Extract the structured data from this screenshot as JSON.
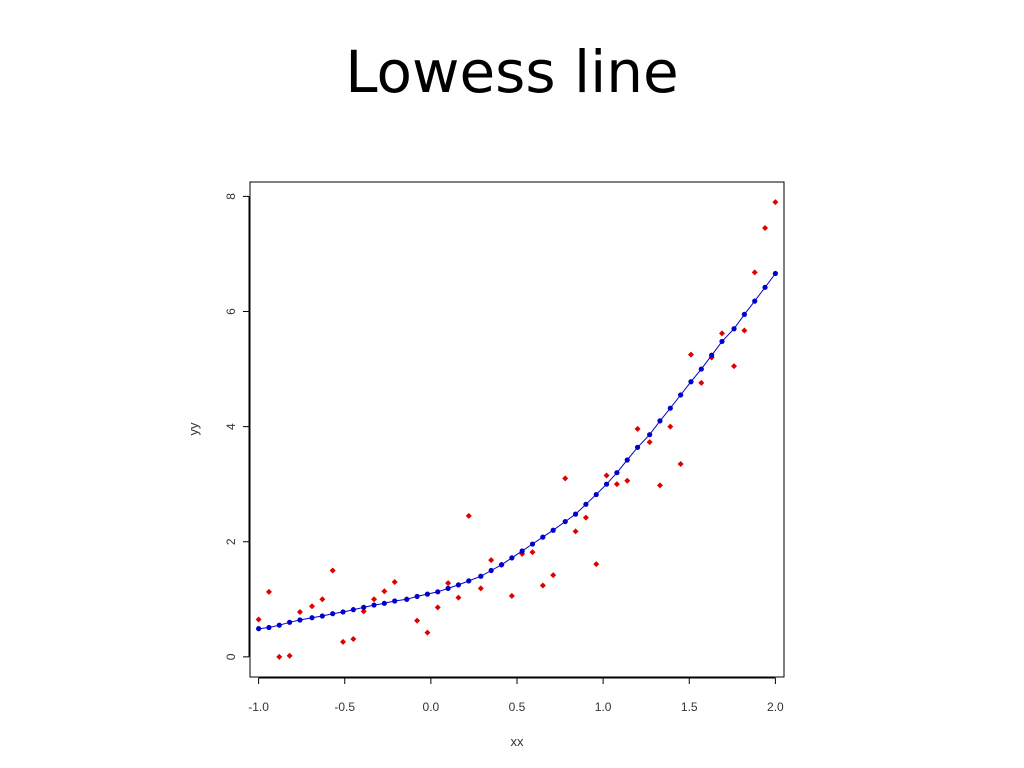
{
  "slide": {
    "title": "Lowess line"
  },
  "chart_data": {
    "type": "scatter",
    "title": "Lowess line",
    "xlabel": "xx",
    "ylabel": "yy",
    "xlim": [
      -1.05,
      2.05
    ],
    "ylim": [
      -0.35,
      8.25
    ],
    "x_ticks": [
      -1.0,
      -0.5,
      0.0,
      0.5,
      1.0,
      1.5,
      2.0
    ],
    "x_tick_labels": [
      "-1.0",
      "-0.5",
      "0.0",
      "0.5",
      "1.0",
      "1.5",
      "2.0"
    ],
    "y_ticks": [
      0,
      2,
      4,
      6,
      8
    ],
    "y_tick_labels": [
      "0",
      "2",
      "4",
      "6",
      "8"
    ],
    "grid": false,
    "legend": "none",
    "series": [
      {
        "kind": "points",
        "color": "#e00000",
        "points": [
          [
            -1.0,
            0.65
          ],
          [
            -0.94,
            1.13
          ],
          [
            -0.88,
            0.0
          ],
          [
            -0.82,
            0.02
          ],
          [
            -0.76,
            0.78
          ],
          [
            -0.69,
            0.88
          ],
          [
            -0.63,
            1.0
          ],
          [
            -0.57,
            1.5
          ],
          [
            -0.51,
            0.26
          ],
          [
            -0.45,
            0.31
          ],
          [
            -0.39,
            0.79
          ],
          [
            -0.33,
            1.0
          ],
          [
            -0.27,
            1.14
          ],
          [
            -0.21,
            1.3
          ],
          [
            -0.14,
            1.0
          ],
          [
            -0.08,
            0.63
          ],
          [
            -0.02,
            0.42
          ],
          [
            0.04,
            0.86
          ],
          [
            0.1,
            1.28
          ],
          [
            0.16,
            1.03
          ],
          [
            0.22,
            2.45
          ],
          [
            0.29,
            1.19
          ],
          [
            0.35,
            1.68
          ],
          [
            0.41,
            1.6
          ],
          [
            0.47,
            1.06
          ],
          [
            0.53,
            1.79
          ],
          [
            0.59,
            1.82
          ],
          [
            0.65,
            1.24
          ],
          [
            0.71,
            1.42
          ],
          [
            0.78,
            3.1
          ],
          [
            0.84,
            2.18
          ],
          [
            0.9,
            2.42
          ],
          [
            0.96,
            1.61
          ],
          [
            1.02,
            3.15
          ],
          [
            1.08,
            3.0
          ],
          [
            1.14,
            3.06
          ],
          [
            1.2,
            3.96
          ],
          [
            1.27,
            3.73
          ],
          [
            1.33,
            2.98
          ],
          [
            1.39,
            4.0
          ],
          [
            1.45,
            3.35
          ],
          [
            1.51,
            5.25
          ],
          [
            1.57,
            4.76
          ],
          [
            1.63,
            5.2
          ],
          [
            1.69,
            5.62
          ],
          [
            1.76,
            5.05
          ],
          [
            1.82,
            5.67
          ],
          [
            1.88,
            6.68
          ],
          [
            1.94,
            7.45
          ],
          [
            2.0,
            7.9
          ]
        ]
      },
      {
        "kind": "lowess-line",
        "color": "#0000cc",
        "points": [
          [
            -1.0,
            0.49
          ],
          [
            -0.94,
            0.51
          ],
          [
            -0.88,
            0.55
          ],
          [
            -0.82,
            0.6
          ],
          [
            -0.76,
            0.64
          ],
          [
            -0.69,
            0.68
          ],
          [
            -0.63,
            0.71
          ],
          [
            -0.57,
            0.75
          ],
          [
            -0.51,
            0.78
          ],
          [
            -0.45,
            0.82
          ],
          [
            -0.39,
            0.86
          ],
          [
            -0.33,
            0.9
          ],
          [
            -0.27,
            0.93
          ],
          [
            -0.21,
            0.97
          ],
          [
            -0.14,
            1.0
          ],
          [
            -0.08,
            1.05
          ],
          [
            -0.02,
            1.09
          ],
          [
            0.04,
            1.13
          ],
          [
            0.1,
            1.19
          ],
          [
            0.16,
            1.25
          ],
          [
            0.22,
            1.32
          ],
          [
            0.29,
            1.4
          ],
          [
            0.35,
            1.5
          ],
          [
            0.41,
            1.6
          ],
          [
            0.47,
            1.72
          ],
          [
            0.53,
            1.84
          ],
          [
            0.59,
            1.96
          ],
          [
            0.65,
            2.08
          ],
          [
            0.71,
            2.2
          ],
          [
            0.78,
            2.35
          ],
          [
            0.84,
            2.48
          ],
          [
            0.9,
            2.65
          ],
          [
            0.96,
            2.82
          ],
          [
            1.02,
            3.0
          ],
          [
            1.08,
            3.2
          ],
          [
            1.14,
            3.42
          ],
          [
            1.2,
            3.64
          ],
          [
            1.27,
            3.86
          ],
          [
            1.33,
            4.1
          ],
          [
            1.39,
            4.32
          ],
          [
            1.45,
            4.55
          ],
          [
            1.51,
            4.78
          ],
          [
            1.57,
            5.0
          ],
          [
            1.63,
            5.24
          ],
          [
            1.69,
            5.48
          ],
          [
            1.76,
            5.7
          ],
          [
            1.82,
            5.95
          ],
          [
            1.88,
            6.18
          ],
          [
            1.94,
            6.42
          ],
          [
            2.0,
            6.66
          ]
        ]
      }
    ]
  }
}
